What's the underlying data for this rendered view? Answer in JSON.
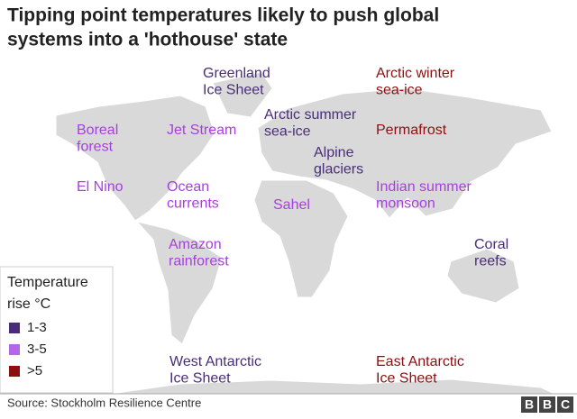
{
  "title": [
    "Tipping point temperatures likely to push global",
    "systems into a 'hothouse' state"
  ],
  "labels": [
    {
      "lines": [
        "Greenland",
        "Ice Sheet"
      ],
      "color": "#4a2d7a"
    },
    {
      "lines": [
        "Arctic winter",
        "sea-ice"
      ],
      "color": "#8e0f0f"
    },
    {
      "lines": [
        "Boreal",
        "forest"
      ],
      "color": "#a93ee0"
    },
    {
      "lines": [
        "Jet Stream"
      ],
      "color": "#a93ee0"
    },
    {
      "lines": [
        "Arctic summer",
        "sea-ice"
      ],
      "color": "#4a2d7a"
    },
    {
      "lines": [
        "Permafrost"
      ],
      "color": "#8e0f0f"
    },
    {
      "lines": [
        "Alpine",
        "glaciers"
      ],
      "color": "#4a2d7a"
    },
    {
      "lines": [
        "El Nino"
      ],
      "color": "#a93ee0"
    },
    {
      "lines": [
        "Ocean",
        "currents"
      ],
      "color": "#a93ee0"
    },
    {
      "lines": [
        "Sahel"
      ],
      "color": "#a93ee0"
    },
    {
      "lines": [
        "Indian summer",
        "monsoon"
      ],
      "color": "#a93ee0"
    },
    {
      "lines": [
        "Coral",
        "reefs"
      ],
      "color": "#4a2d7a"
    },
    {
      "lines": [
        "Amazon",
        "rainforest"
      ],
      "color": "#a93ee0"
    },
    {
      "lines": [
        "West Antarctic",
        "Ice Sheet"
      ],
      "color": "#4a2d7a"
    },
    {
      "lines": [
        "East Antarctic",
        "Ice Sheet"
      ],
      "color": "#8e0f0f"
    }
  ],
  "legend": {
    "title": [
      "Temperature",
      "rise °C"
    ],
    "items": [
      {
        "label": "1-3",
        "color": "#4a2d7a"
      },
      {
        "label": "3-5",
        "color": "#b565e8"
      },
      {
        "label": ">5",
        "color": "#8e0f0f"
      }
    ]
  },
  "source": "Source: Stockholm Resilience Centre",
  "logo": [
    "B",
    "B",
    "C"
  ]
}
